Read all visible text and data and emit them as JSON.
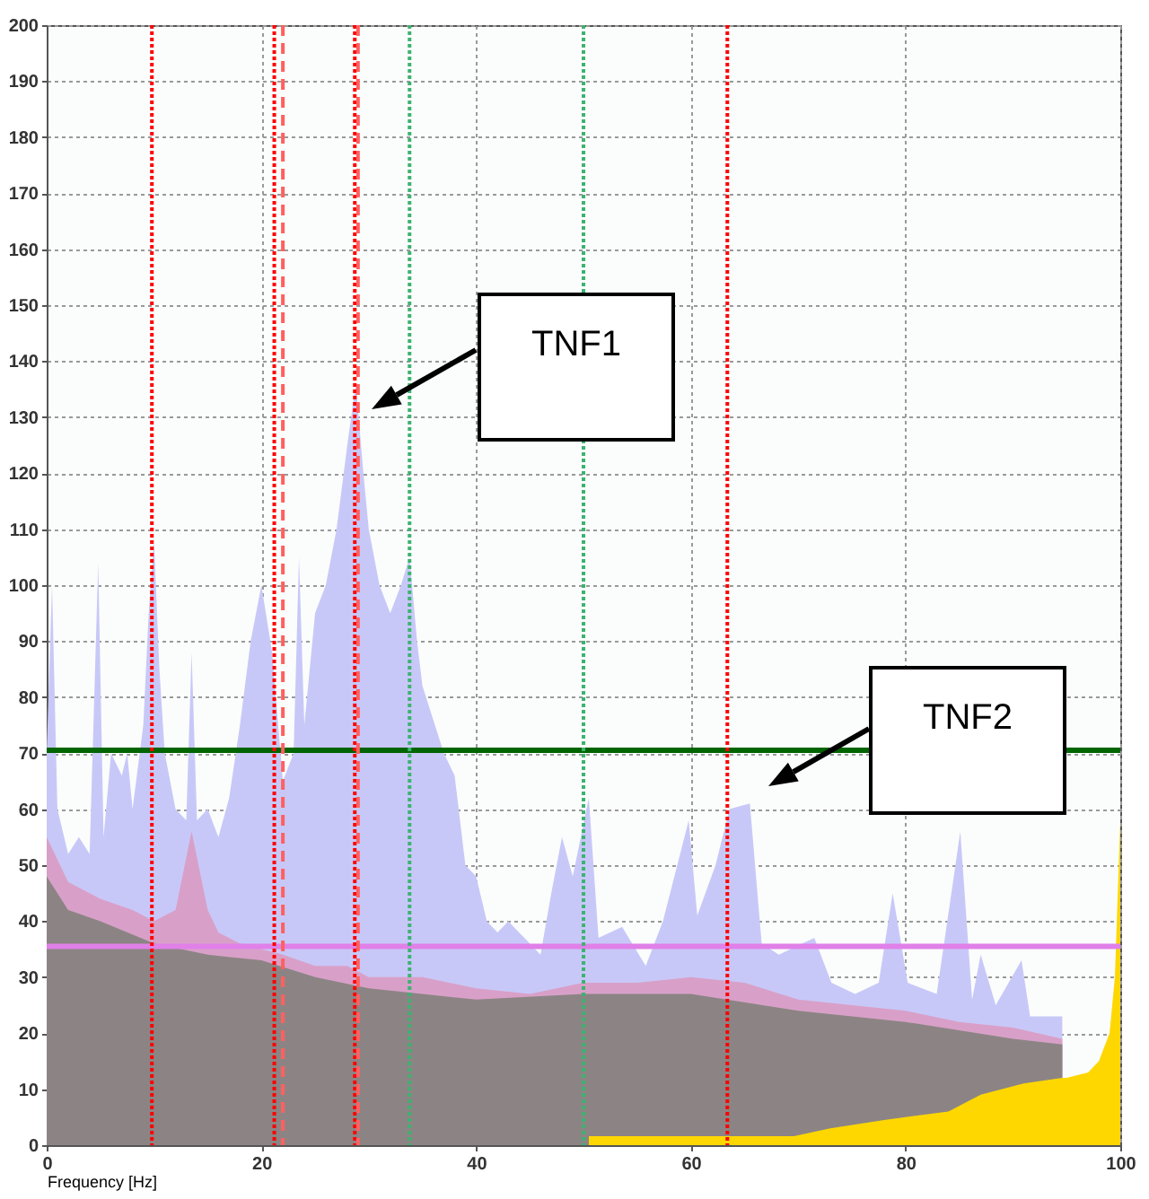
{
  "chart_data": {
    "type": "area",
    "xlabel": "Frequency [Hz]",
    "xlim": [
      0,
      100
    ],
    "xticks": [
      0,
      20,
      40,
      60,
      80,
      100
    ],
    "ylim": [
      0,
      200
    ],
    "yticks": [
      0,
      10,
      20,
      30,
      40,
      50,
      60,
      70,
      80,
      90,
      100,
      110,
      120,
      130,
      140,
      150,
      160,
      170,
      180,
      190,
      200
    ],
    "grid": true,
    "series": [
      {
        "color": "#c8c8f8",
        "x": [
          0,
          0.5,
          1,
          2,
          3,
          4,
          4.8,
          5.3,
          6,
          7,
          7.5,
          8,
          9,
          9.5,
          10,
          10.5,
          11,
          12,
          13,
          13.5,
          14,
          15,
          16,
          17,
          18,
          19,
          20,
          21,
          22,
          23,
          23.5,
          24,
          25,
          26,
          27,
          28,
          28.8,
          29.5,
          30,
          31,
          32,
          33,
          33.8,
          34.5,
          35,
          36,
          37,
          38,
          39,
          40,
          41,
          42,
          43,
          44,
          45,
          46,
          47,
          48,
          49,
          50.5,
          51.4,
          53.6,
          55.8,
          57.4,
          59.8,
          60.6,
          62.3,
          63.6,
          65.5,
          66.6,
          68.2,
          71.5,
          73.1,
          75.3,
          77.5,
          78.8,
          80.2,
          82.9,
          85.1,
          86.2,
          87,
          88.4,
          90.8,
          91.6,
          94.6
        ],
        "values": [
          70,
          100,
          60,
          52,
          55,
          52,
          104,
          55,
          70,
          66,
          70,
          60,
          75,
          95,
          108,
          85,
          70,
          60,
          58,
          88,
          58,
          60,
          55,
          62,
          75,
          90,
          100,
          88,
          65,
          70,
          105,
          75,
          95,
          100,
          110,
          125,
          136,
          120,
          110,
          100,
          95,
          100,
          105,
          90,
          82,
          76,
          70,
          66,
          50,
          48,
          40,
          38,
          40,
          38,
          36,
          34,
          45,
          55,
          48,
          62,
          37,
          39,
          32,
          40,
          58,
          41,
          50,
          60,
          61,
          36,
          34,
          37,
          29,
          27,
          29,
          45,
          29,
          27,
          56,
          26,
          34,
          25,
          33,
          23,
          23
        ]
      },
      {
        "color": "#d8a0c8",
        "x": [
          0,
          2,
          5,
          8,
          10,
          12,
          13.5,
          15,
          16,
          18,
          20,
          22,
          25,
          28,
          30,
          35,
          40,
          45,
          50,
          55,
          60,
          65,
          70,
          75,
          80,
          85,
          90,
          94.6
        ],
        "values": [
          55,
          47,
          44,
          42,
          40,
          42,
          56,
          42,
          38,
          36,
          35,
          34,
          32,
          32,
          30,
          30,
          28,
          27,
          29,
          29,
          30,
          29,
          26,
          25,
          24,
          22,
          21,
          19
        ]
      },
      {
        "color": "#8c8484",
        "x": [
          0,
          2,
          5,
          10,
          15,
          20,
          25,
          30,
          35,
          40,
          50,
          60,
          70,
          80,
          90,
          94.6
        ],
        "values": [
          48,
          42,
          40,
          36,
          34,
          33,
          30,
          28,
          27,
          26,
          27,
          27,
          24,
          22,
          19,
          18
        ]
      },
      {
        "color": "#ffd700",
        "x": [
          50.5,
          69.6,
          73,
          78,
          84,
          87,
          91,
          94.6,
          95,
          97,
          98,
          99,
          99.5,
          100
        ],
        "values": [
          1.6,
          1.6,
          3,
          4.5,
          6,
          9,
          11,
          12,
          12,
          13,
          15,
          20,
          30,
          58
        ]
      }
    ],
    "ref_lines": [
      {
        "axis": "y",
        "value": 70.5,
        "color": "#006400",
        "line_style": "solid"
      },
      {
        "axis": "y",
        "value": 35.5,
        "color": "#e080e8",
        "line_style": "solid"
      },
      {
        "axis": "x",
        "value": 9.8,
        "color": "#ff0000",
        "line_style": "dotted"
      },
      {
        "axis": "x",
        "value": 21.2,
        "color": "#ff0000",
        "line_style": "dotted"
      },
      {
        "axis": "x",
        "value": 22,
        "color": "#ff6060",
        "line_style": "dashed"
      },
      {
        "axis": "x",
        "value": 28.7,
        "color": "#ff0000",
        "line_style": "dotted"
      },
      {
        "axis": "x",
        "value": 29,
        "color": "#ff6060",
        "line_style": "dashed"
      },
      {
        "axis": "x",
        "value": 33.8,
        "color": "#3cb371",
        "line_style": "dotted"
      },
      {
        "axis": "x",
        "value": 50,
        "color": "#3cb371",
        "line_style": "dotted"
      },
      {
        "axis": "x",
        "value": 63.4,
        "color": "#ff0000",
        "line_style": "dotted"
      }
    ],
    "annotations": [
      "TNF1",
      "TNF2"
    ]
  }
}
